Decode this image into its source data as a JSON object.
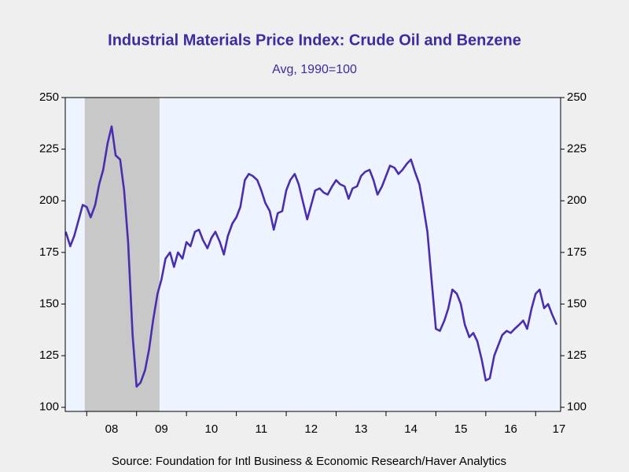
{
  "chart_data": {
    "type": "line",
    "title": "Industrial Materials Price Index: Crude Oil and Benzene",
    "subtitle": "Avg, 1990=100",
    "source": "Source:  Foundation for Intl Business & Economic Research/Haver Analytics",
    "color": "#4a2db0",
    "recession": [
      2007.96,
      2009.46
    ],
    "xlim": [
      2007.57,
      2017.5
    ],
    "xticks": [
      {
        "value": 2008.5,
        "label": "08"
      },
      {
        "value": 2009.5,
        "label": "09"
      },
      {
        "value": 2010.5,
        "label": "10"
      },
      {
        "value": 2011.5,
        "label": "11"
      },
      {
        "value": 2012.5,
        "label": "12"
      },
      {
        "value": 2013.5,
        "label": "13"
      },
      {
        "value": 2014.5,
        "label": "14"
      },
      {
        "value": 2015.5,
        "label": "15"
      },
      {
        "value": 2016.5,
        "label": "16"
      },
      {
        "value": 2017.5,
        "label": "17"
      }
    ],
    "ylim": [
      98,
      250
    ],
    "yticks": [
      100,
      125,
      150,
      175,
      200,
      225,
      250
    ],
    "x": [
      2007.58,
      2007.67,
      2007.75,
      2007.83,
      2007.92,
      2008.0,
      2008.08,
      2008.17,
      2008.25,
      2008.33,
      2008.42,
      2008.5,
      2008.58,
      2008.67,
      2008.75,
      2008.83,
      2008.92,
      2009.0,
      2009.08,
      2009.17,
      2009.25,
      2009.33,
      2009.42,
      2009.5,
      2009.58,
      2009.67,
      2009.75,
      2009.83,
      2009.92,
      2010.0,
      2010.08,
      2010.17,
      2010.25,
      2010.33,
      2010.42,
      2010.5,
      2010.58,
      2010.67,
      2010.75,
      2010.83,
      2010.92,
      2011.0,
      2011.08,
      2011.17,
      2011.25,
      2011.33,
      2011.42,
      2011.5,
      2011.58,
      2011.67,
      2011.75,
      2011.83,
      2011.92,
      2012.0,
      2012.08,
      2012.17,
      2012.25,
      2012.33,
      2012.42,
      2012.5,
      2012.58,
      2012.67,
      2012.75,
      2012.83,
      2012.92,
      2013.0,
      2013.08,
      2013.17,
      2013.25,
      2013.33,
      2013.42,
      2013.5,
      2013.58,
      2013.67,
      2013.75,
      2013.83,
      2013.92,
      2014.0,
      2014.08,
      2014.17,
      2014.25,
      2014.33,
      2014.42,
      2014.5,
      2014.58,
      2014.67,
      2014.75,
      2014.83,
      2014.92,
      2015.0,
      2015.08,
      2015.17,
      2015.25,
      2015.33,
      2015.42,
      2015.5,
      2015.58,
      2015.67,
      2015.75,
      2015.83,
      2015.92,
      2016.0,
      2016.08,
      2016.17,
      2016.25,
      2016.33,
      2016.42,
      2016.5,
      2016.58,
      2016.67,
      2016.75,
      2016.83,
      2016.92,
      2017.0,
      2017.08,
      2017.17,
      2017.25,
      2017.33,
      2017.42
    ],
    "values": [
      185,
      178,
      183,
      190,
      198,
      197,
      192,
      198,
      208,
      215,
      228,
      236,
      222,
      220,
      205,
      180,
      135,
      110,
      112,
      118,
      128,
      142,
      155,
      162,
      172,
      175,
      168,
      175,
      172,
      180,
      178,
      185,
      186,
      181,
      177,
      182,
      185,
      180,
      174,
      183,
      189,
      192,
      197,
      210,
      213,
      212,
      210,
      205,
      199,
      195,
      186,
      194,
      195,
      205,
      210,
      213,
      208,
      200,
      191,
      198,
      205,
      206,
      204,
      203,
      207,
      210,
      208,
      207,
      201,
      206,
      207,
      212,
      214,
      215,
      210,
      203,
      207,
      212,
      217,
      216,
      213,
      215,
      218,
      220,
      214,
      208,
      197,
      185,
      160,
      138,
      137,
      142,
      148,
      157,
      155,
      150,
      140,
      134,
      136,
      132,
      123,
      113,
      114,
      125,
      130,
      135,
      137,
      136,
      138,
      140,
      142,
      138,
      148,
      155,
      157,
      148,
      150,
      145,
      140
    ]
  }
}
